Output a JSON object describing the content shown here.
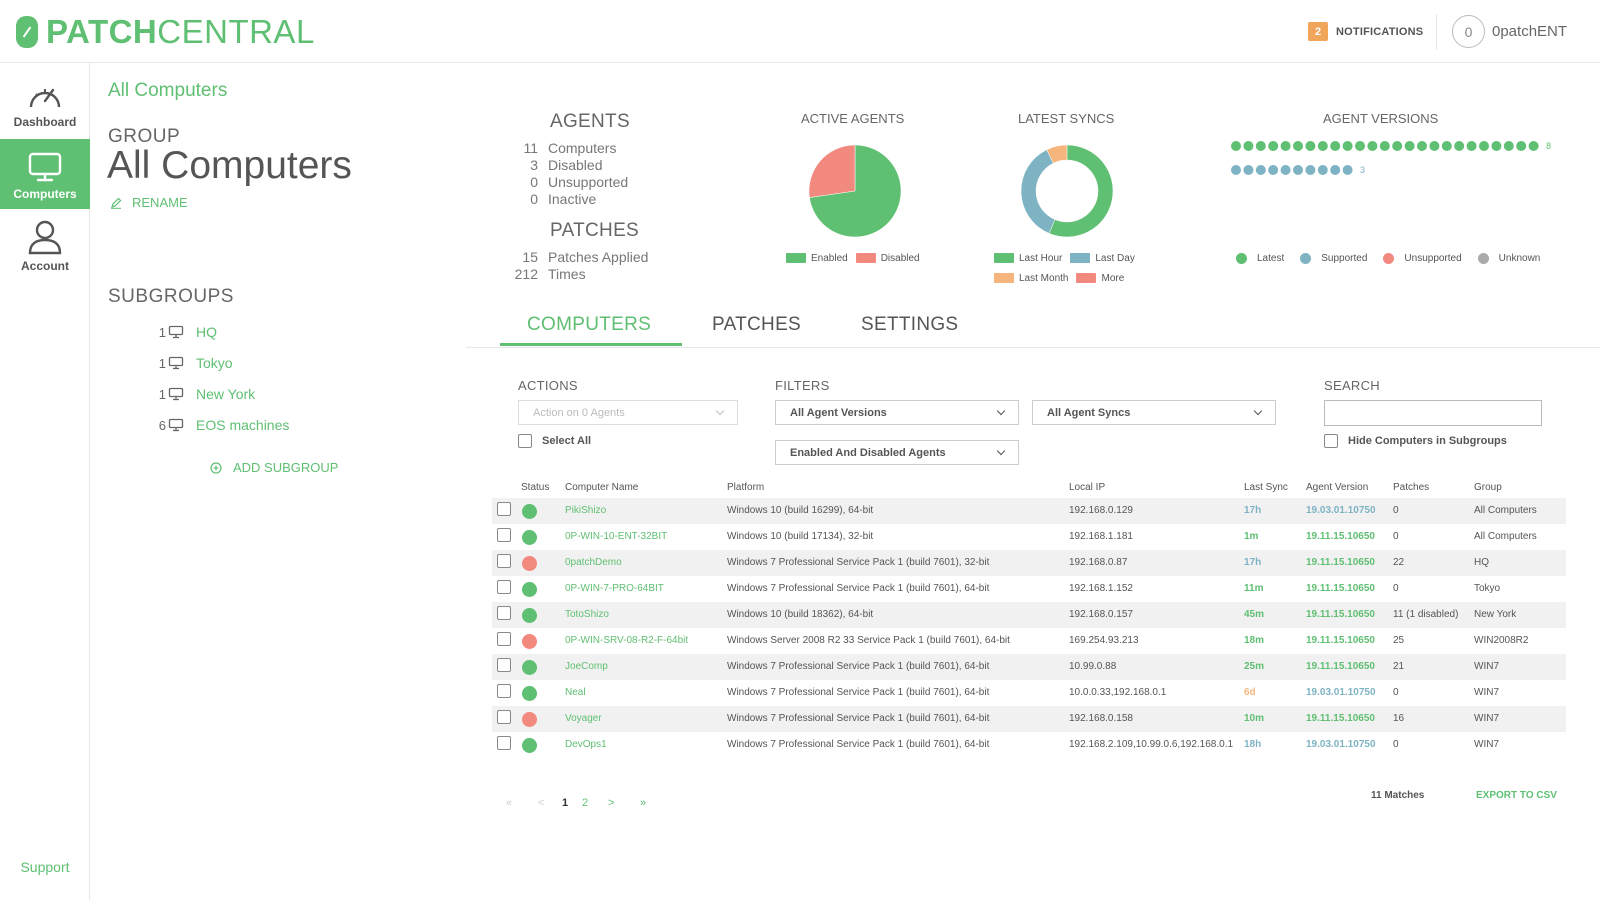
{
  "brand": {
    "bold": "PATCH",
    "light": "CENTRAL"
  },
  "header": {
    "notifications_count": "2",
    "notifications_label": "NOTIFICATIONS",
    "user_initial": "0",
    "user_name": "0patchENT"
  },
  "nav": {
    "dashboard": "Dashboard",
    "computers": "Computers",
    "account": "Account",
    "support": "Support"
  },
  "breadcrumb": "All Computers",
  "group": {
    "label": "GROUP",
    "name": "All Computers",
    "rename": "RENAME"
  },
  "subgroups": {
    "title": "SUBGROUPS",
    "items": [
      {
        "count": "1",
        "name": "HQ"
      },
      {
        "count": "1",
        "name": "Tokyo"
      },
      {
        "count": "1",
        "name": "New York"
      },
      {
        "count": "6",
        "name": "EOS machines"
      }
    ],
    "add": "ADD SUBGROUP"
  },
  "agents": {
    "title": "AGENTS",
    "rows": [
      {
        "value": "11",
        "label": "Computers"
      },
      {
        "value": "3",
        "label": "Disabled"
      },
      {
        "value": "0",
        "label": "Unsupported"
      },
      {
        "value": "0",
        "label": "Inactive"
      }
    ]
  },
  "patches": {
    "title": "PATCHES",
    "rows": [
      {
        "value": "15",
        "label": "Patches Applied"
      },
      {
        "value": "212",
        "label": "Times"
      }
    ]
  },
  "colors": {
    "green": "#5fbf72",
    "salmon": "#f2897f",
    "blue": "#7eb3c4",
    "orange": "#f5b57d",
    "gray": "#aaaaaa"
  },
  "chart_data": [
    {
      "type": "pie",
      "title": "ACTIVE AGENTS",
      "categories": [
        "Enabled",
        "Disabled"
      ],
      "values": [
        8,
        3
      ],
      "colors": [
        "#5fbf72",
        "#f2897f"
      ]
    },
    {
      "type": "pie",
      "title": "LATEST SYNCS",
      "donut": true,
      "categories": [
        "Last Hour",
        "Last Day",
        "Last Month",
        "More"
      ],
      "values": [
        6.2,
        4,
        0.8,
        0
      ],
      "colors": [
        "#5fbf72",
        "#7eb3c4",
        "#f5b57d",
        "#f2897f"
      ]
    },
    {
      "type": "scatter",
      "title": "AGENT VERSIONS",
      "categories": [
        "Latest",
        "Supported",
        "Unsupported",
        "Unknown"
      ],
      "series": [
        {
          "name": "Latest",
          "values": [
            8
          ]
        },
        {
          "name": "Supported",
          "values": [
            3
          ]
        }
      ],
      "colors": [
        "#5fbf72",
        "#7eb3c4",
        "#f2897f",
        "#aaaaaa"
      ],
      "dots_per_row": [
        25,
        10
      ],
      "labels": [
        "8",
        "3"
      ]
    }
  ],
  "tabs": [
    "COMPUTERS",
    "PATCHES",
    "SETTINGS"
  ],
  "toolbar": {
    "actions_label": "ACTIONS",
    "action_select": "Action on 0 Agents",
    "select_all": "Select All",
    "filters_label": "FILTERS",
    "versions_select": "All Agent Versions",
    "syncs_select": "All Agent Syncs",
    "agents_select": "Enabled And Disabled Agents",
    "search_label": "SEARCH",
    "search_value": "",
    "hide_subgroups": "Hide Computers in Subgroups"
  },
  "table": {
    "headers": [
      "Status",
      "Computer Name",
      "Platform",
      "Local IP",
      "Last Sync",
      "Agent Version",
      "Patches",
      "Group"
    ],
    "rows": [
      {
        "status": "green",
        "name": "PikiShizo",
        "platform": "Windows 10 (build 16299), 64-bit",
        "ip": "192.168.0.129",
        "sync": "17h",
        "sync_color": "blue",
        "version": "19.03.01.10750",
        "version_color": "blue",
        "patches": "0",
        "group": "All Computers"
      },
      {
        "status": "green",
        "name": "0P-WIN-10-ENT-32BIT",
        "platform": "Windows 10 (build 17134), 32-bit",
        "ip": "192.168.1.181",
        "sync": "1m",
        "sync_color": "green",
        "version": "19.11.15.10650",
        "version_color": "green",
        "patches": "0",
        "group": "All Computers"
      },
      {
        "status": "red",
        "name": "0patchDemo",
        "platform": "Windows 7 Professional Service Pack 1 (build 7601), 32-bit",
        "ip": "192.168.0.87",
        "sync": "17h",
        "sync_color": "blue",
        "version": "19.11.15.10650",
        "version_color": "green",
        "patches": "22",
        "group": "HQ"
      },
      {
        "status": "green",
        "name": "0P-WIN-7-PRO-64BIT",
        "platform": "Windows 7 Professional Service Pack 1 (build 7601), 64-bit",
        "ip": "192.168.1.152",
        "sync": "11m",
        "sync_color": "green",
        "version": "19.11.15.10650",
        "version_color": "green",
        "patches": "0",
        "group": "Tokyo"
      },
      {
        "status": "green",
        "name": "TotoShizo",
        "platform": "Windows 10 (build 18362), 64-bit",
        "ip": "192.168.0.157",
        "sync": "45m",
        "sync_color": "green",
        "version": "19.11.15.10650",
        "version_color": "green",
        "patches": "11 (1 disabled)",
        "group": "New York"
      },
      {
        "status": "red",
        "name": "0P-WIN-SRV-08-R2-F-64bit",
        "platform": "Windows Server 2008 R2 33 Service Pack 1 (build 7601), 64-bit",
        "ip": "169.254.93.213",
        "sync": "18m",
        "sync_color": "green",
        "version": "19.11.15.10650",
        "version_color": "green",
        "patches": "25",
        "group": "WIN2008R2"
      },
      {
        "status": "green",
        "name": "JoeComp",
        "platform": "Windows 7 Professional Service Pack 1 (build 7601), 64-bit",
        "ip": "10.99.0.88",
        "sync": "25m",
        "sync_color": "green",
        "version": "19.11.15.10650",
        "version_color": "green",
        "patches": "21",
        "group": "WIN7"
      },
      {
        "status": "green",
        "name": "Neal",
        "platform": "Windows 7 Professional Service Pack 1 (build 7601), 64-bit",
        "ip": "10.0.0.33,192.168.0.1",
        "sync": "6d",
        "sync_color": "orange",
        "version": "19.03.01.10750",
        "version_color": "blue",
        "patches": "0",
        "group": "WIN7"
      },
      {
        "status": "red",
        "name": "Voyager",
        "platform": "Windows 7 Professional Service Pack 1 (build 7601), 64-bit",
        "ip": "192.168.0.158",
        "sync": "10m",
        "sync_color": "green",
        "version": "19.11.15.10650",
        "version_color": "green",
        "patches": "16",
        "group": "WIN7"
      },
      {
        "status": "green",
        "name": "DevOps1",
        "platform": "Windows 7 Professional Service Pack 1 (build 7601), 64-bit",
        "ip": "192.168.2.109,10.99.0.6,192.168.0.1",
        "sync": "18h",
        "sync_color": "blue",
        "version": "19.03.01.10750",
        "version_color": "blue",
        "patches": "0",
        "group": "WIN7"
      }
    ]
  },
  "pagination": {
    "first": "«",
    "prev": "<",
    "pages": [
      "1",
      "2"
    ],
    "current": "1",
    "next": ">",
    "last": "»"
  },
  "footer": {
    "matches": "11 Matches",
    "export": "EXPORT TO CSV"
  }
}
